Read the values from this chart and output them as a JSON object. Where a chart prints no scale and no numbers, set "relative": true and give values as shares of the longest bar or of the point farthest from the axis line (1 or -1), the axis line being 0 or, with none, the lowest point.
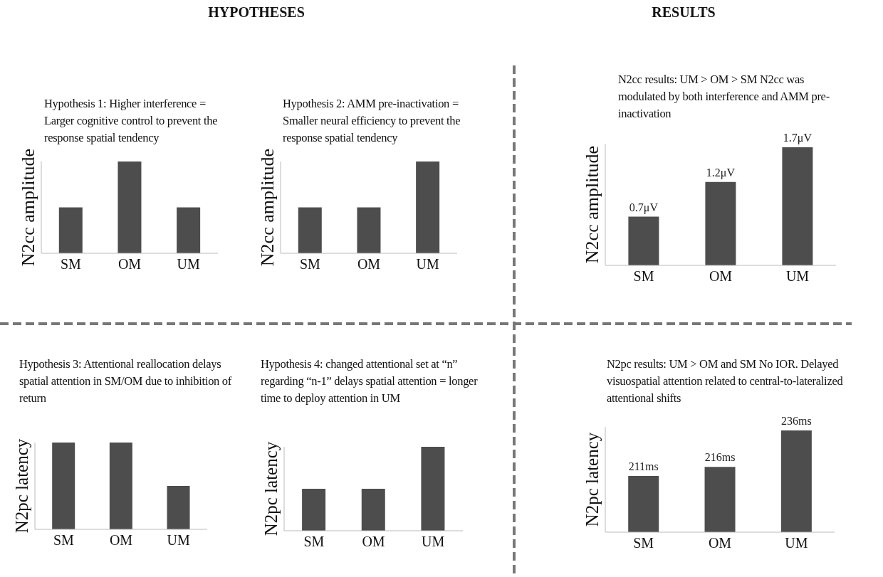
{
  "chart_data": [
    {
      "type": "bar",
      "title": "Hypothesis 1: Higher interference = Larger cognitive control to prevent the response spatial tendency",
      "ylabel": "N2cc amplitude",
      "categories": [
        "SM",
        "OM",
        "UM"
      ],
      "values": [
        0.5,
        1,
        0.5
      ],
      "color": "#4d4d4d",
      "relative": true,
      "tick_labels": "x",
      "annotations": [
        "HYPOTHESES"
      ]
    },
    {
      "type": "bar",
      "title": "Hypothesis 2: AMM pre-inactivation = Smaller neural efficiency to prevent the response spatial tendency",
      "ylabel": "N2cc amplitude",
      "categories": [
        "SM",
        "OM",
        "UM"
      ],
      "values": [
        0.5,
        0.5,
        1
      ],
      "color": "#4d4d4d",
      "relative": true,
      "tick_labels": "x"
    },
    {
      "type": "bar",
      "title": "N2cc results: UM > OM > SM N2cc was modulated by both interference and  AMM pre-inactivation",
      "ylabel": "N2cc amplitude",
      "categories": [
        "SM",
        "OM",
        "UM"
      ],
      "values": [
        0.7,
        1.2,
        1.7
      ],
      "value_labels": [
        "0.7μV",
        "1.2μV",
        "1.7μV"
      ],
      "color": "#4d4d4d",
      "ylim": [
        0,
        1.75
      ],
      "tick_labels": "x",
      "annotations": [
        "RESULTS"
      ]
    },
    {
      "type": "bar",
      "title": "Hypothesis 3: Attentional reallocation delays spatial attention in SM/OM due to inhibition of return",
      "ylabel": "N2pc latency",
      "categories": [
        "SM",
        "OM",
        "UM"
      ],
      "values": [
        1,
        1,
        0.5
      ],
      "color": "#4d4d4d",
      "relative": true,
      "tick_labels": "x"
    },
    {
      "type": "bar",
      "title": "Hypothesis 4: changed attentional set at “n” regarding “n-1” delays spatial attention = longer time to deploy attention in UM",
      "ylabel": "N2pc latency",
      "categories": [
        "SM",
        "OM",
        "UM"
      ],
      "values": [
        0.5,
        0.5,
        1
      ],
      "color": "#4d4d4d",
      "relative": true,
      "tick_labels": "x"
    },
    {
      "type": "bar",
      "title": "N2pc results: UM > OM and SM No IOR. Delayed visuospatial attention related to central-to-lateralized attentional shifts",
      "ylabel": "N2pc latency",
      "categories": [
        "SM",
        "OM",
        "UM"
      ],
      "values": [
        211,
        216,
        236
      ],
      "value_labels": [
        "211ms",
        "216ms",
        "236ms"
      ],
      "color": "#4d4d4d",
      "ylim": [
        180,
        238
      ],
      "tick_labels": "x"
    }
  ]
}
